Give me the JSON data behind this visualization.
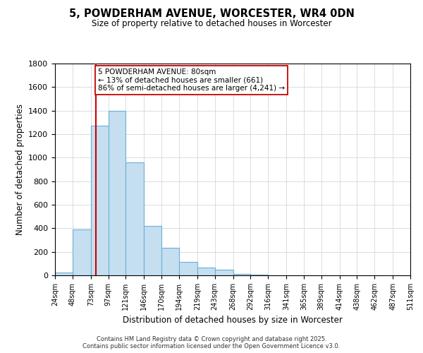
{
  "title": "5, POWDERHAM AVENUE, WORCESTER, WR4 0DN",
  "subtitle": "Size of property relative to detached houses in Worcester",
  "xlabel": "Distribution of detached houses by size in Worcester",
  "ylabel": "Number of detached properties",
  "bin_edges": [
    24,
    48,
    73,
    97,
    121,
    146,
    170,
    194,
    219,
    243,
    268,
    292,
    316,
    341,
    365,
    389,
    414,
    438,
    462,
    487,
    511
  ],
  "bar_heights": [
    25,
    390,
    1270,
    1400,
    960,
    420,
    235,
    115,
    65,
    48,
    10,
    5,
    2,
    1,
    1,
    0,
    0,
    0,
    0,
    0
  ],
  "bar_color": "#c5dff0",
  "bar_edge_color": "#6aaed6",
  "grid_color": "#d0d8e0",
  "bg_color": "#ffffff",
  "vline_x": 80,
  "vline_color": "#cc0000",
  "annotation_title": "5 POWDERHAM AVENUE: 80sqm",
  "annotation_line1": "← 13% of detached houses are smaller (661)",
  "annotation_line2": "86% of semi-detached houses are larger (4,241) →",
  "annotation_box_color": "#ffffff",
  "annotation_box_edge": "#cc0000",
  "ylim": [
    0,
    1800
  ],
  "yticks": [
    0,
    200,
    400,
    600,
    800,
    1000,
    1200,
    1400,
    1600,
    1800
  ],
  "footer1": "Contains HM Land Registry data © Crown copyright and database right 2025.",
  "footer2": "Contains public sector information licensed under the Open Government Licence v3.0."
}
